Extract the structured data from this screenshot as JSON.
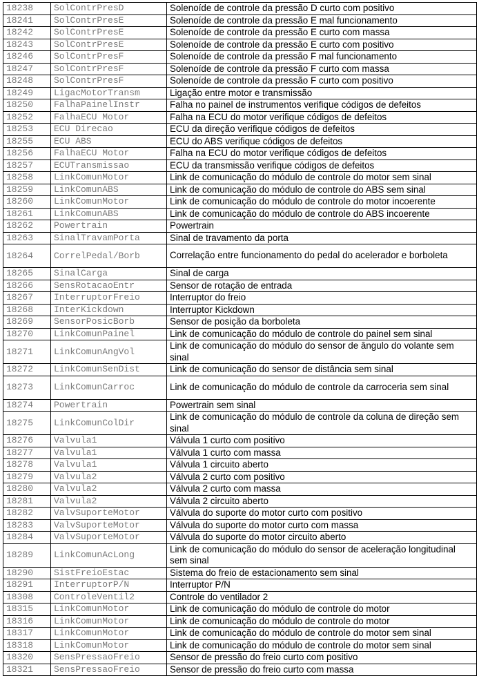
{
  "rows": [
    {
      "code": "18238",
      "name": "SolContrPresD",
      "desc": "Solenoíde de controle da pressão D curto com positivo"
    },
    {
      "code": "18241",
      "name": "SolContrPresE",
      "desc": "Solenoíde de controle da pressão E mal funcionamento"
    },
    {
      "code": "18242",
      "name": "SolContrPresE",
      "desc": "Solenoíde de controle da pressão E curto com massa"
    },
    {
      "code": "18243",
      "name": "SolContrPresE",
      "desc": "Solenoíde de controle da pressão E curto com positivo"
    },
    {
      "code": "18246",
      "name": "SolContrPresF",
      "desc": "Solenoíde de controle da pressão F mal funcionamento"
    },
    {
      "code": "18247",
      "name": "SolContrPresF",
      "desc": "Solenoíde de controle da pressão F curto com massa"
    },
    {
      "code": "18248",
      "name": "SolContrPresF",
      "desc": "Solenoíde de controle da pressão F curto com positivo"
    },
    {
      "code": "18249",
      "name": "LigacMotorTransm",
      "desc": "Ligação entre motor e transmissão"
    },
    {
      "code": "18250",
      "name": "FalhaPainelInstr",
      "desc": "Falha no painel de instrumentos verifique códigos de defeitos"
    },
    {
      "code": "18252",
      "name": "FalhaECU Motor",
      "desc": "Falha na ECU do motor verifique códigos de defeitos"
    },
    {
      "code": "18253",
      "name": "ECU Direcao",
      "desc": "ECU da direção verifique códigos de defeitos"
    },
    {
      "code": "18255",
      "name": "ECU ABS",
      "desc": "ECU do ABS verifique códigos de defeitos"
    },
    {
      "code": "18256",
      "name": "FalhaECU Motor",
      "desc": "Falha na ECU do motor verifique códigos de defeitos"
    },
    {
      "code": "18257",
      "name": "ECUTransmissao",
      "desc": "ECU da transmissão verifique códigos de defeitos"
    },
    {
      "code": "18258",
      "name": "LinkComunMotor",
      "desc": "Link de comunicação do módulo de controle do motor sem sinal"
    },
    {
      "code": "18259",
      "name": "LinkComunABS",
      "desc": "Link de comunicação do módulo de controle do ABS sem sinal"
    },
    {
      "code": "18260",
      "name": "LinkComunMotor",
      "desc": "Link de comunicação do módulo de controle do motor incoerente"
    },
    {
      "code": "18261",
      "name": "LinkComunABS",
      "desc": "Link de comunicação do módulo de controle do ABS incoerente"
    },
    {
      "code": "18262",
      "name": "Powertrain",
      "desc": "Powertrain"
    },
    {
      "code": "18263",
      "name": "SinalTravamPorta",
      "desc": "Sinal de travamento da porta"
    },
    {
      "code": "18264",
      "name": "CorrelPedal/Borb",
      "desc": "Correlação entre funcionamento do pedal do acelerador e borboleta",
      "double": true
    },
    {
      "code": "18265",
      "name": "SinalCarga",
      "desc": "Sinal de carga"
    },
    {
      "code": "18266",
      "name": "SensRotacaoEntr",
      "desc": "Sensor de rotação de entrada"
    },
    {
      "code": "18267",
      "name": "InterruptorFreio",
      "desc": "Interruptor do freio"
    },
    {
      "code": "18268",
      "name": "InterKickdown",
      "desc": "Interruptor Kickdown"
    },
    {
      "code": "18269",
      "name": "SensorPosicBorb",
      "desc": "Sensor de posição da borboleta"
    },
    {
      "code": "18270",
      "name": "LinkComunPainel",
      "desc": "Link de comunicação do módulo de controle do painel sem sinal"
    },
    {
      "code": "18271",
      "name": "LinkComunAngVol",
      "desc": "Link de comunicação do módulo do sensor de ângulo do volante sem sinal",
      "double": true
    },
    {
      "code": "18272",
      "name": "LinkComunSenDist",
      "desc": "Link de comunicação do sensor de distância sem sinal"
    },
    {
      "code": "18273",
      "name": "LinkComunCarroc",
      "desc": "Link de comunicação do módulo de controle da carroceria sem sinal",
      "double": true
    },
    {
      "code": "18274",
      "name": "Powertrain",
      "desc": "Powertrain sem sinal"
    },
    {
      "code": "18275",
      "name": "LinkComunColDir",
      "desc": "Link de comunicação do módulo de controle da coluna de direção sem sinal",
      "double": true
    },
    {
      "code": "18276",
      "name": "Valvula1",
      "desc": "Válvula 1 curto com positivo"
    },
    {
      "code": "18277",
      "name": "Valvula1",
      "desc": "Válvula 1 curto com massa"
    },
    {
      "code": "18278",
      "name": "Valvula1",
      "desc": "Válvula 1 circuito aberto"
    },
    {
      "code": "18279",
      "name": "Valvula2",
      "desc": "Válvula 2 curto com positivo"
    },
    {
      "code": "18280",
      "name": "Valvula2",
      "desc": "Válvula 2 curto com massa"
    },
    {
      "code": "18281",
      "name": "Valvula2",
      "desc": "Válvula 2 circuito aberto"
    },
    {
      "code": "18282",
      "name": "ValvSuporteMotor",
      "desc": "Válvula do suporte do motor curto com positivo"
    },
    {
      "code": "18283",
      "name": "ValvSuporteMotor",
      "desc": "Válvula do suporte do motor curto com massa"
    },
    {
      "code": "18284",
      "name": "ValvSuporteMotor",
      "desc": "Válvula do suporte do motor circuito aberto"
    },
    {
      "code": "18289",
      "name": "LinkComunAcLong",
      "desc": "Link de comunicação do módulo do sensor de aceleração longitudinal sem sinal",
      "double": true
    },
    {
      "code": "18290",
      "name": "SistFreioEstac",
      "desc": "Sistema do freio de estacionamento sem sinal"
    },
    {
      "code": "18291",
      "name": "InterruptorP/N",
      "desc": "Interruptor P/N"
    },
    {
      "code": "18308",
      "name": "ControleVentil2",
      "desc": "Controle do ventilador 2"
    },
    {
      "code": "18315",
      "name": "LinkComunMotor",
      "desc": "Link de comunicação do módulo de controle do motor"
    },
    {
      "code": "18316",
      "name": "LinkComunMotor",
      "desc": "Link de comunicação do módulo de controle do motor"
    },
    {
      "code": "18317",
      "name": "LinkComunMotor",
      "desc": "Link de comunicação do módulo de controle do motor sem sinal"
    },
    {
      "code": "18318",
      "name": "LinkComunMotor",
      "desc": "Link de comunicação do módulo de controle do motor sem sinal"
    },
    {
      "code": "18320",
      "name": "SensPressaoFreio",
      "desc": "Sensor de pressão do freio curto com positivo"
    },
    {
      "code": "18321",
      "name": "SensPressaoFreio",
      "desc": "Sensor de pressão do freio curto com massa"
    }
  ]
}
